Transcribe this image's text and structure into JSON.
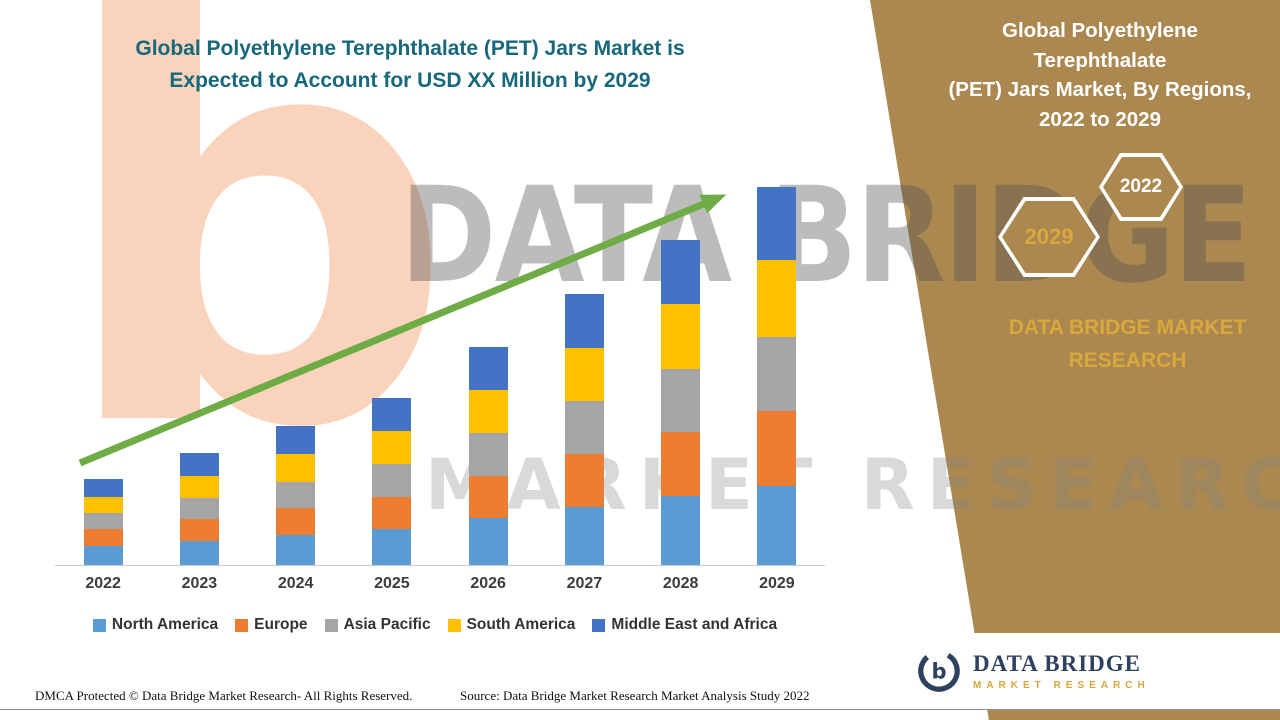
{
  "colors": {
    "accent_teal": "#17687B",
    "panel_brown": "#AB8850",
    "gold": "#D9A73C",
    "arrow_green": "#6FAC46",
    "axis_gray": "#C8C8C8",
    "label_dark": "#3C3C3C"
  },
  "left_title": {
    "line1": "Global Polyethylene Terephthalate (PET) Jars Market is",
    "line2": "Expected to Account for USD XX Million by 2029"
  },
  "right_panel": {
    "title_line1": "Global Polyethylene Terephthalate",
    "title_line2": "(PET) Jars Market, By Regions,",
    "title_line3": "2022 to 2029",
    "badge_2029": "2029",
    "badge_2022": "2022",
    "brand_line1": "DATA BRIDGE MARKET",
    "brand_line2": "RESEARCH"
  },
  "watermark": {
    "letter": "b",
    "brand": "DATA BRIDGE",
    "sub": "MARKET RESEARCH"
  },
  "footer": {
    "dmca": "DMCA Protected © Data Bridge Market Research- All Rights Reserved.",
    "source": "Source: Data Bridge Market Research Market Analysis Study 2022"
  },
  "logo": {
    "name": "DATA BRIDGE",
    "sub": "MARKET RESEARCH"
  },
  "chart_data": {
    "type": "bar",
    "stacked": true,
    "title": "Global Polyethylene Terephthalate (PET) Jars Market is Expected to Account for USD XX Million by 2029",
    "xlabel": "",
    "ylabel": "",
    "ylim": [
      0,
      400
    ],
    "grid": false,
    "legend_position": "bottom",
    "trend_arrow": true,
    "note": "Y-axis values undisclosed (USD XX Million); segment values estimated from pixel heights, arbitrary index units",
    "categories": [
      "2022",
      "2023",
      "2024",
      "2025",
      "2026",
      "2027",
      "2028",
      "2029"
    ],
    "series": [
      {
        "name": "North America",
        "color": "#5B9BD5",
        "values": [
          19,
          24,
          30,
          36,
          47,
          58,
          70,
          80
        ]
      },
      {
        "name": "Europe",
        "color": "#ED7D31",
        "values": [
          17,
          22,
          27,
          33,
          43,
          54,
          64,
          75
        ]
      },
      {
        "name": "Asia Pacific",
        "color": "#A5A5A5",
        "values": [
          16,
          22,
          27,
          33,
          43,
          53,
          64,
          75
        ]
      },
      {
        "name": "South America",
        "color": "#FFC000",
        "values": [
          17,
          22,
          28,
          33,
          43,
          54,
          65,
          77
        ]
      },
      {
        "name": "Middle East and Africa",
        "color": "#4472C4",
        "values": [
          18,
          23,
          28,
          33,
          44,
          54,
          65,
          74
        ]
      }
    ],
    "totals": [
      87,
      113,
      140,
      168,
      220,
      273,
      328,
      381
    ]
  }
}
